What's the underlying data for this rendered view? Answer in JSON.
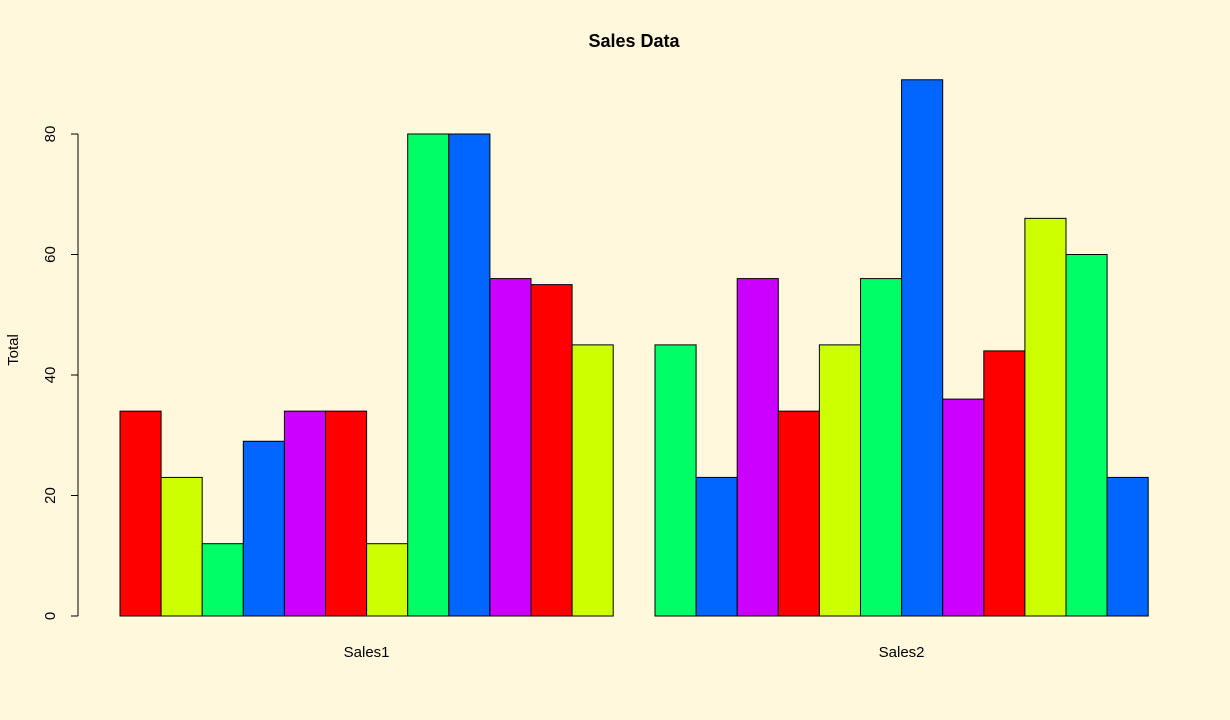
{
  "chart_data": {
    "type": "bar",
    "title": "Sales Data",
    "xlabel": "",
    "ylabel": "Total",
    "ylim": [
      0,
      90
    ],
    "yticks": [
      0,
      20,
      40,
      60,
      80
    ],
    "grid": false,
    "legend": "none",
    "groups": [
      {
        "label": "Sales1",
        "values": [
          34,
          23,
          12,
          29,
          34,
          34,
          12,
          80,
          80,
          56,
          55,
          45
        ],
        "colors": [
          "#FF0000",
          "#CCFF00",
          "#00FF66",
          "#0066FF",
          "#CC00FF",
          "#FF0000",
          "#CCFF00",
          "#00FF66",
          "#0066FF",
          "#CC00FF",
          "#FF0000",
          "#CCFF00"
        ]
      },
      {
        "label": "Sales2",
        "values": [
          45,
          23,
          56,
          34,
          45,
          56,
          89,
          36,
          44,
          66,
          60,
          23
        ],
        "colors": [
          "#00FF66",
          "#0066FF",
          "#CC00FF",
          "#FF0000",
          "#CCFF00",
          "#00FF66",
          "#0066FF",
          "#CC00FF",
          "#FF0000",
          "#CCFF00",
          "#00FF66",
          "#0066FF"
        ]
      }
    ],
    "background": "#FFF8DC"
  }
}
